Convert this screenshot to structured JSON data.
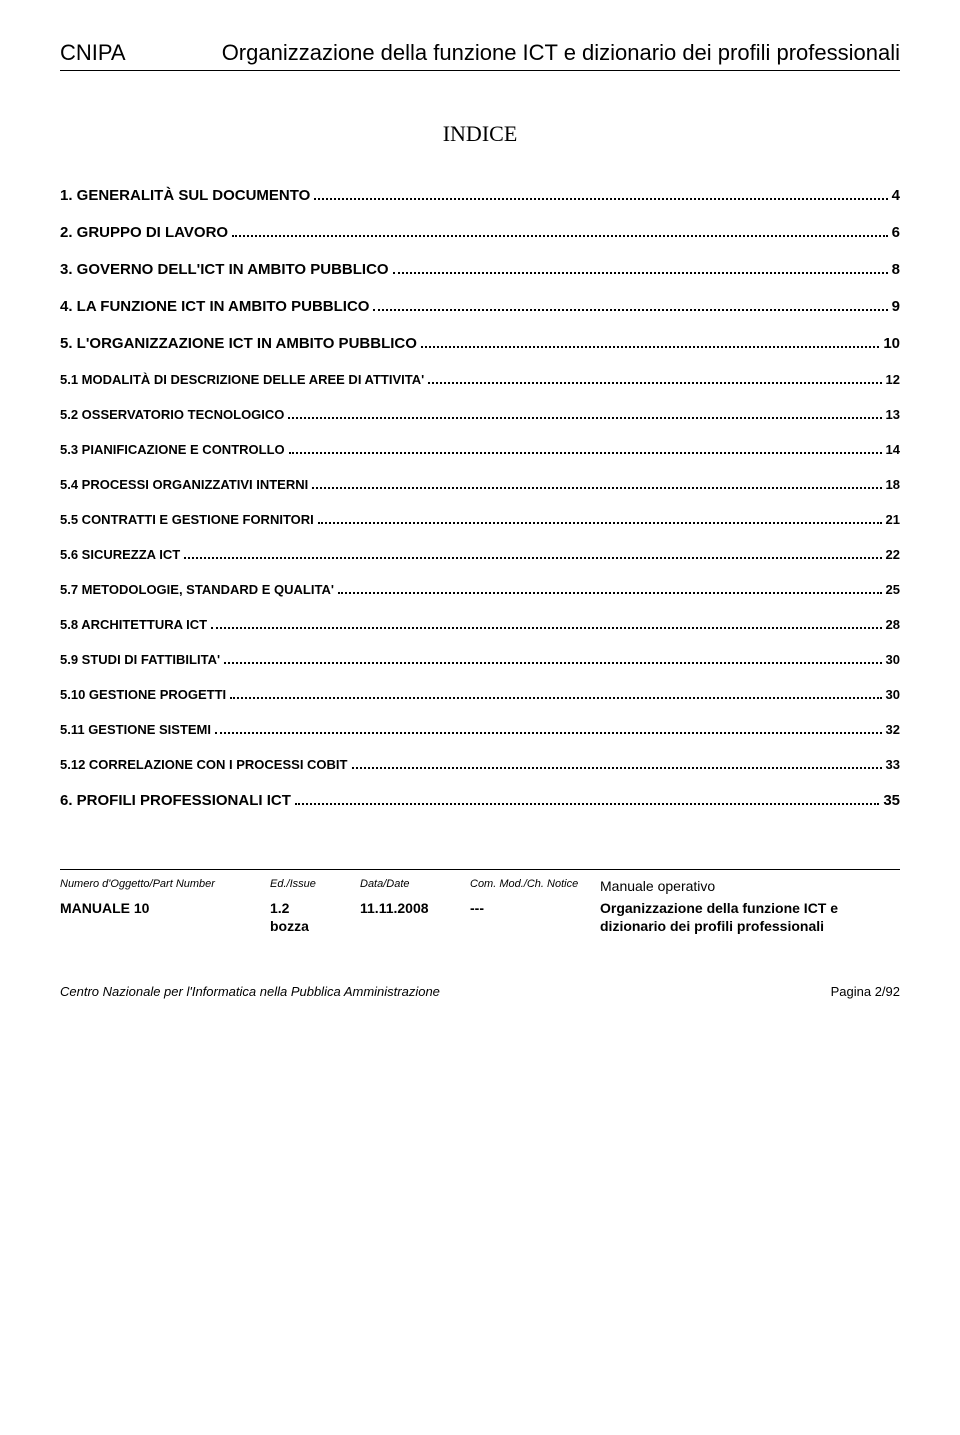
{
  "header": {
    "left": "CNIPA",
    "right": "Organizzazione della funzione ICT e dizionario dei profili professionali"
  },
  "indice_title": "INDICE",
  "toc": [
    {
      "label": "1. GENERALITÀ SUL DOCUMENTO",
      "page": "4",
      "sub": false
    },
    {
      "label": "2. GRUPPO DI LAVORO",
      "page": "6",
      "sub": false
    },
    {
      "label": "3. GOVERNO DELL'ICT IN AMBITO PUBBLICO",
      "page": "8",
      "sub": false
    },
    {
      "label": "4. LA FUNZIONE ICT IN AMBITO PUBBLICO",
      "page": "9",
      "sub": false
    },
    {
      "label": "5. L'ORGANIZZAZIONE ICT IN AMBITO PUBBLICO",
      "page": "10",
      "sub": false
    },
    {
      "label": "5.1 MODALITÀ DI DESCRIZIONE DELLE AREE DI ATTIVITA'",
      "page": "12",
      "sub": true
    },
    {
      "label": "5.2 OSSERVATORIO TECNOLOGICO",
      "page": "13",
      "sub": true
    },
    {
      "label": "5.3 PIANIFICAZIONE E CONTROLLO",
      "page": "14",
      "sub": true
    },
    {
      "label": "5.4 PROCESSI ORGANIZZATIVI INTERNI",
      "page": "18",
      "sub": true
    },
    {
      "label": "5.5 CONTRATTI E GESTIONE FORNITORI",
      "page": "21",
      "sub": true
    },
    {
      "label": "5.6 SICUREZZA ICT",
      "page": "22",
      "sub": true
    },
    {
      "label": "5.7 METODOLOGIE, STANDARD E QUALITA'",
      "page": "25",
      "sub": true
    },
    {
      "label": "5.8 ARCHITETTURA ICT",
      "page": "28",
      "sub": true
    },
    {
      "label": "5.9 STUDI DI FATTIBILITA'",
      "page": "30",
      "sub": true
    },
    {
      "label": "5.10 GESTIONE PROGETTI",
      "page": "30",
      "sub": true
    },
    {
      "label": "5.11 GESTIONE SISTEMI",
      "page": "32",
      "sub": true
    },
    {
      "label": "5.12 CORRELAZIONE CON I PROCESSI COBIT",
      "page": "33",
      "sub": true
    },
    {
      "label": "6. PROFILI PROFESSIONALI ICT",
      "page": "35",
      "sub": false
    }
  ],
  "footer": {
    "headers": {
      "col1": "Numero d'Oggetto/Part Number",
      "col2": "Ed./Issue",
      "col3": "Data/Date",
      "col4": "Com. Mod./Ch. Notice",
      "col5": "Manuale operativo"
    },
    "row2": {
      "col1": "MANUALE 10",
      "col2": "1.2",
      "col3": "11.11.2008",
      "col4": "---",
      "col5": "Organizzazione della funzione ICT e"
    },
    "row3": {
      "col1": "",
      "col2": "bozza",
      "col3": "",
      "col4": "",
      "col5": "dizionario dei profili professionali"
    }
  },
  "bottom": {
    "left": "Centro Nazionale per l'Informatica nella Pubblica Amministrazione",
    "right_label": "Pagina ",
    "right_page": "2/92"
  }
}
